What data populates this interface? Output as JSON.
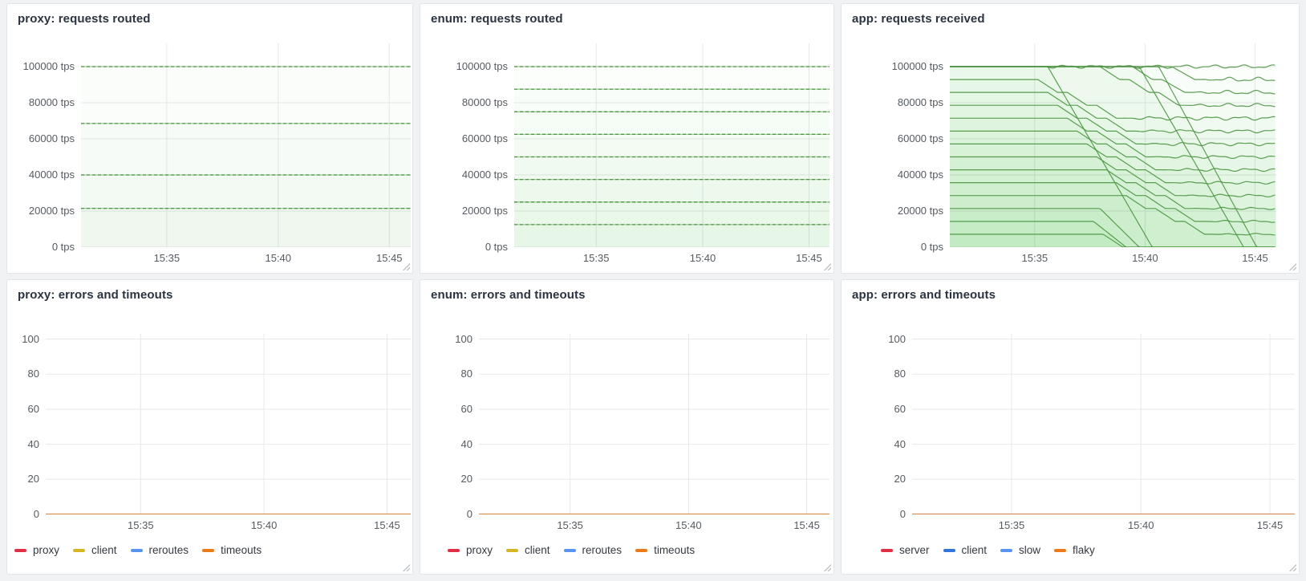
{
  "colors": {
    "page_bg": "#f1f2f4",
    "panel_bg": "#ffffff",
    "panel_border": "#e4e6e9",
    "grid": "#e7e8eb",
    "title_text": "#2b3440",
    "tick_text": "#555b61",
    "legend_text": "#343a41",
    "series_green": "#56a64b",
    "series_green_dark": "#4c9342",
    "series_green_light": "#9ecb96",
    "red": "#e02f44",
    "yellow": "#d6b625",
    "blue": "#5794f2",
    "dark_blue": "#3274d9",
    "orange": "#eb7b18"
  },
  "chart_data": [
    {
      "type": "line",
      "title": "proxy: requests routed",
      "ylabel_unit": "tps",
      "x_tick_labels": [
        "15:35",
        "15:40",
        "15:45"
      ],
      "y_ticks": [
        {
          "value": 0,
          "label": "0 tps"
        },
        {
          "value": 20000,
          "label": "20000 tps"
        },
        {
          "value": 40000,
          "label": "40000 tps"
        },
        {
          "value": 60000,
          "label": "60000 tps"
        },
        {
          "value": 80000,
          "label": "80000 tps"
        },
        {
          "value": 100000,
          "label": "100000 tps"
        }
      ],
      "ylim": [
        0,
        112889
      ],
      "grid": true,
      "legend": null,
      "style": "dashed",
      "fill_opacity": 0.025,
      "series": [
        {
          "level": 100000
        },
        {
          "level": 68500
        },
        {
          "level": 40000
        },
        {
          "level": 21500
        }
      ]
    },
    {
      "type": "line",
      "title": "enum: requests routed",
      "ylabel_unit": "tps",
      "x_tick_labels": [
        "15:35",
        "15:40",
        "15:45"
      ],
      "y_ticks": [
        {
          "value": 0,
          "label": "0 tps"
        },
        {
          "value": 20000,
          "label": "20000 tps"
        },
        {
          "value": 40000,
          "label": "40000 tps"
        },
        {
          "value": 60000,
          "label": "60000 tps"
        },
        {
          "value": 80000,
          "label": "80000 tps"
        },
        {
          "value": 100000,
          "label": "100000 tps"
        }
      ],
      "ylim": [
        0,
        112889
      ],
      "grid": true,
      "legend": null,
      "style": "dashed",
      "fill_opacity": 0.016,
      "series": [
        {
          "level": 100000
        },
        {
          "level": 87500
        },
        {
          "level": 75000
        },
        {
          "level": 62500
        },
        {
          "level": 50000
        },
        {
          "level": 37500
        },
        {
          "level": 25000
        },
        {
          "level": 12500
        }
      ]
    },
    {
      "type": "line",
      "title": "app: requests received",
      "ylabel_unit": "tps",
      "x_tick_labels": [
        "15:35",
        "15:40",
        "15:45"
      ],
      "y_ticks": [
        {
          "value": 0,
          "label": "0 tps"
        },
        {
          "value": 20000,
          "label": "20000 tps"
        },
        {
          "value": 40000,
          "label": "40000 tps"
        },
        {
          "value": 60000,
          "label": "60000 tps"
        },
        {
          "value": 80000,
          "label": "80000 tps"
        },
        {
          "value": 100000,
          "label": "100000 tps"
        }
      ],
      "ylim": [
        0,
        112889
      ],
      "grid": true,
      "legend": null,
      "style": "solid",
      "fill_opacity": 0.014,
      "series": [
        {
          "points": [
            [
              0,
              100000
            ],
            [
              1,
              100000
            ]
          ],
          "wiggle_after": 0.24,
          "wiggle_amp": 900
        },
        {
          "points": [
            [
              0,
              92857
            ],
            [
              0.27,
              92857
            ],
            [
              0.33,
              85714
            ],
            [
              0.36,
              85714
            ],
            [
              0.42,
              78571
            ],
            [
              0.45,
              78571
            ],
            [
              0.51,
              71429
            ],
            [
              1,
              71429
            ]
          ],
          "wiggle_after": 0.53,
          "wiggle_amp": 1000
        },
        {
          "points": [
            [
              0,
              85714
            ],
            [
              0.3,
              85714
            ],
            [
              0.36,
              78571
            ],
            [
              0.39,
              78571
            ],
            [
              0.45,
              71429
            ],
            [
              0.48,
              71429
            ],
            [
              0.54,
              64286
            ],
            [
              1,
              64286
            ]
          ],
          "wiggle_after": 0.56,
          "wiggle_amp": 900
        },
        {
          "points": [
            [
              0,
              78571
            ],
            [
              0.33,
              78571
            ],
            [
              0.39,
              71429
            ],
            [
              0.42,
              71429
            ],
            [
              0.48,
              64286
            ],
            [
              0.51,
              64286
            ],
            [
              0.57,
              57143
            ],
            [
              1,
              57143
            ]
          ],
          "wiggle_after": 0.59,
          "wiggle_amp": 900
        },
        {
          "points": [
            [
              0,
              71429
            ],
            [
              0.36,
              71429
            ],
            [
              0.42,
              64286
            ],
            [
              0.45,
              64286
            ],
            [
              0.51,
              57143
            ],
            [
              0.54,
              57143
            ],
            [
              0.6,
              50000
            ],
            [
              1,
              50000
            ]
          ],
          "wiggle_after": 0.62,
          "wiggle_amp": 800
        },
        {
          "points": [
            [
              0,
              64286
            ],
            [
              0.39,
              64286
            ],
            [
              0.45,
              57143
            ],
            [
              0.48,
              57143
            ],
            [
              0.54,
              50000
            ],
            [
              0.57,
              50000
            ],
            [
              0.63,
              42857
            ],
            [
              1,
              42857
            ]
          ],
          "wiggle_after": 0.65,
          "wiggle_amp": 800
        },
        {
          "points": [
            [
              0,
              57143
            ],
            [
              0.42,
              57143
            ],
            [
              0.48,
              50000
            ],
            [
              0.51,
              50000
            ],
            [
              0.57,
              42857
            ],
            [
              0.6,
              42857
            ],
            [
              0.66,
              35714
            ],
            [
              1,
              35714
            ]
          ],
          "wiggle_after": 0.68,
          "wiggle_amp": 700
        },
        {
          "points": [
            [
              0,
              50000
            ],
            [
              0.45,
              50000
            ],
            [
              0.51,
              42857
            ],
            [
              0.54,
              42857
            ],
            [
              0.6,
              35714
            ],
            [
              0.63,
              35714
            ],
            [
              0.69,
              28571
            ],
            [
              1,
              28571
            ]
          ],
          "wiggle_after": 0.71,
          "wiggle_amp": 700
        },
        {
          "points": [
            [
              0,
              42857
            ],
            [
              0.48,
              42857
            ],
            [
              0.54,
              35714
            ],
            [
              0.57,
              35714
            ],
            [
              0.63,
              28571
            ],
            [
              0.66,
              28571
            ],
            [
              0.72,
              21429
            ],
            [
              1,
              21429
            ]
          ],
          "wiggle_after": 0.74,
          "wiggle_amp": 600
        },
        {
          "points": [
            [
              0,
              35714
            ],
            [
              0.51,
              35714
            ],
            [
              0.57,
              28571
            ],
            [
              0.6,
              28571
            ],
            [
              0.66,
              21429
            ],
            [
              0.69,
              21429
            ],
            [
              0.75,
              14286
            ],
            [
              1,
              14286
            ]
          ],
          "wiggle_after": 0.77,
          "wiggle_amp": 600
        },
        {
          "points": [
            [
              0,
              28571
            ],
            [
              0.54,
              28571
            ],
            [
              0.6,
              21429
            ],
            [
              0.63,
              21429
            ],
            [
              0.69,
              14286
            ],
            [
              0.72,
              14286
            ],
            [
              0.78,
              7143
            ],
            [
              1,
              7143
            ]
          ],
          "wiggle_after": 0.8,
          "wiggle_amp": 500
        },
        {
          "points": [
            [
              0,
              21429
            ],
            [
              0.46,
              21429
            ],
            [
              0.58,
              0
            ],
            [
              1,
              0
            ]
          ]
        },
        {
          "points": [
            [
              0,
              14286
            ],
            [
              0.44,
              14286
            ],
            [
              0.54,
              0
            ],
            [
              1,
              0
            ]
          ]
        },
        {
          "points": [
            [
              0,
              7143
            ],
            [
              0.47,
              7143
            ],
            [
              0.53,
              0
            ],
            [
              1,
              0
            ]
          ]
        },
        {
          "points": [
            [
              0,
              100000
            ],
            [
              0.46,
              100000
            ],
            [
              0.52,
              92857
            ],
            [
              0.55,
              92857
            ],
            [
              0.61,
              85714
            ],
            [
              0.64,
              85714
            ],
            [
              0.7,
              78571
            ],
            [
              1,
              78571
            ]
          ],
          "wiggle_after": 0.72,
          "wiggle_amp": 1000
        },
        {
          "points": [
            [
              0,
              100000
            ],
            [
              0.56,
              100000
            ],
            [
              0.62,
              92857
            ],
            [
              0.65,
              92857
            ],
            [
              0.72,
              85714
            ],
            [
              1,
              85714
            ]
          ],
          "wiggle_after": 0.74,
          "wiggle_amp": 1100
        },
        {
          "points": [
            [
              0,
              100000
            ],
            [
              0.68,
              100000
            ],
            [
              0.75,
              92857
            ],
            [
              1,
              92857
            ]
          ],
          "wiggle_after": 0.77,
          "wiggle_amp": 1200
        },
        {
          "points": [
            [
              0,
              100000
            ],
            [
              0.3,
              100000
            ],
            [
              0.62,
              0
            ],
            [
              1,
              0
            ]
          ]
        },
        {
          "points": [
            [
              0,
              100000
            ],
            [
              0.58,
              100000
            ],
            [
              0.9,
              0
            ],
            [
              1,
              0
            ]
          ]
        },
        {
          "points": [
            [
              0,
              100000
            ],
            [
              0.64,
              100000
            ],
            [
              0.94,
              0
            ],
            [
              1,
              0
            ]
          ]
        }
      ]
    },
    {
      "type": "line",
      "title": "proxy: errors and timeouts",
      "x_tick_labels": [
        "15:35",
        "15:40",
        "15:45"
      ],
      "y_ticks": [
        {
          "value": 0,
          "label": "0"
        },
        {
          "value": 20,
          "label": "20"
        },
        {
          "value": 40,
          "label": "40"
        },
        {
          "value": 60,
          "label": "60"
        },
        {
          "value": 80,
          "label": "80"
        },
        {
          "value": 100,
          "label": "100"
        }
      ],
      "ylim": [
        0,
        103
      ],
      "grid": true,
      "legend_position": "bottom",
      "style": "flat-colored",
      "fill_opacity": 0,
      "series": [
        {
          "name": "proxy",
          "color": "#e02f44",
          "level": 0
        },
        {
          "name": "client",
          "color": "#d6b625",
          "level": 0
        },
        {
          "name": "reroutes",
          "color": "#5794f2",
          "level": 0
        },
        {
          "name": "timeouts",
          "color": "#eb7b18",
          "level": 0
        }
      ]
    },
    {
      "type": "line",
      "title": "enum: errors and timeouts",
      "x_tick_labels": [
        "15:35",
        "15:40",
        "15:45"
      ],
      "y_ticks": [
        {
          "value": 0,
          "label": "0"
        },
        {
          "value": 20,
          "label": "20"
        },
        {
          "value": 40,
          "label": "40"
        },
        {
          "value": 60,
          "label": "60"
        },
        {
          "value": 80,
          "label": "80"
        },
        {
          "value": 100,
          "label": "100"
        }
      ],
      "ylim": [
        0,
        103
      ],
      "grid": true,
      "legend_position": "bottom",
      "style": "flat-colored",
      "fill_opacity": 0,
      "series": [
        {
          "name": "proxy",
          "color": "#e02f44",
          "level": 0
        },
        {
          "name": "client",
          "color": "#d6b625",
          "level": 0
        },
        {
          "name": "reroutes",
          "color": "#5794f2",
          "level": 0
        },
        {
          "name": "timeouts",
          "color": "#eb7b18",
          "level": 0
        }
      ]
    },
    {
      "type": "line",
      "title": "app: errors and timeouts",
      "x_tick_labels": [
        "15:35",
        "15:40",
        "15:45"
      ],
      "y_ticks": [
        {
          "value": 0,
          "label": "0"
        },
        {
          "value": 20,
          "label": "20"
        },
        {
          "value": 40,
          "label": "40"
        },
        {
          "value": 60,
          "label": "60"
        },
        {
          "value": 80,
          "label": "80"
        },
        {
          "value": 100,
          "label": "100"
        }
      ],
      "ylim": [
        0,
        103
      ],
      "grid": true,
      "legend_position": "bottom",
      "style": "flat-colored",
      "fill_opacity": 0,
      "series": [
        {
          "name": "server",
          "color": "#e02f44",
          "level": 0
        },
        {
          "name": "client",
          "color": "#3274d9",
          "level": 0
        },
        {
          "name": "slow",
          "color": "#5794f2",
          "level": 0
        },
        {
          "name": "flaky",
          "color": "#eb7b18",
          "level": 0
        }
      ]
    }
  ]
}
